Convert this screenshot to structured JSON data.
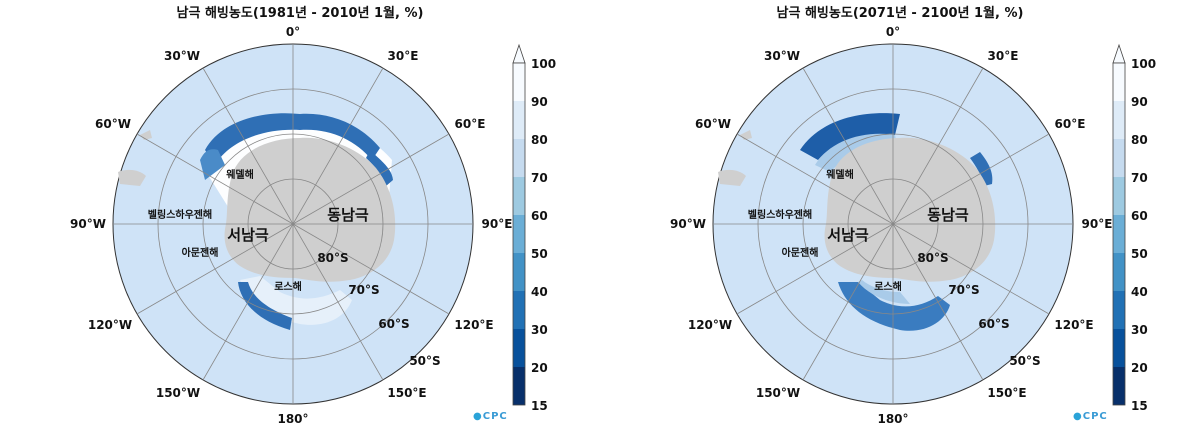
{
  "maps": [
    {
      "title": "남극 해빙농도(1981년 - 2010년 1월, %)",
      "variant": "past",
      "logo": "CPC"
    },
    {
      "title": "남극 해빙농도(2071년 - 2100년 1월, %)",
      "variant": "future",
      "logo": "CPC"
    }
  ],
  "longitude_labels": {
    "lon_0": "0°",
    "lon_30e": "30°E",
    "lon_60e": "60°E",
    "lon_90e": "90°E",
    "lon_120e": "120°E",
    "lon_150e": "150°E",
    "lon_180": "180°",
    "lon_150w": "150°W",
    "lon_120w": "120°W",
    "lon_90w": "90°W",
    "lon_60w": "60°W",
    "lon_30w": "30°W"
  },
  "latitude_labels": {
    "lat_80s": "80°S",
    "lat_70s": "70°S",
    "lat_60s": "60°S",
    "lat_50s": "50°S"
  },
  "place_labels": {
    "weddell_sea": "웨델해",
    "bellingshausen_sea": "벨링스하우젠해",
    "amundsen_sea": "아문젠해",
    "ross_sea": "로스해",
    "west_antarctica": "서남극",
    "east_antarctica": "동남극"
  },
  "colorbar": {
    "ticks": [
      "100",
      "90",
      "80",
      "70",
      "60",
      "50",
      "40",
      "30",
      "20",
      "15"
    ],
    "colors": [
      "#f7fbff",
      "#deebf7",
      "#c6dbef",
      "#9ecae1",
      "#6baed6",
      "#4292c6",
      "#2171b5",
      "#08519c",
      "#08306b"
    ]
  },
  "colors": {
    "ocean": "#cfe3f7",
    "land": "#cfcfcf",
    "grid": "#888888"
  }
}
